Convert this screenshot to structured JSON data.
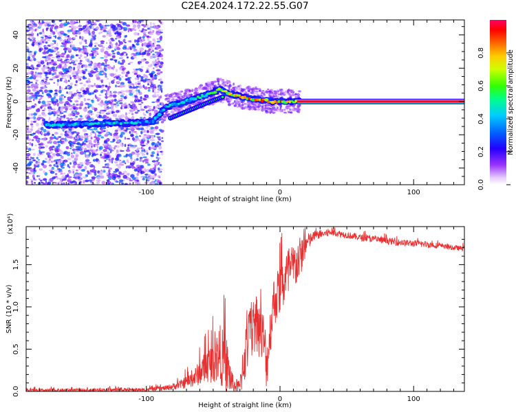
{
  "title": "C2E4.2024.172.22.55.G07",
  "chart_data": [
    {
      "type": "heatmap",
      "xlabel": "Height of straight line (km)",
      "ylabel": "Frequency (Hz)",
      "xlim": [
        -190,
        138
      ],
      "ylim": [
        -50,
        49
      ],
      "xticks": [
        -100,
        0,
        100
      ],
      "yticks": [
        -40,
        -20,
        0,
        20,
        40
      ],
      "colorbar": {
        "label": "Normalized spectral amplitude",
        "range": [
          0,
          1
        ],
        "ticks": [
          0.0,
          0.2,
          0.4,
          0.6,
          0.8
        ],
        "tick_labels": [
          "0.0",
          "0.2",
          "0.4",
          "0.6",
          "0.8"
        ]
      },
      "ridge": {
        "x": [
          -175,
          -150,
          -130,
          -110,
          -95,
          -85,
          -70,
          -55,
          -45,
          -35,
          -25,
          -15,
          -5,
          5,
          15,
          138
        ],
        "freq": [
          -14,
          -14,
          -13,
          -13,
          -12,
          -3,
          0,
          4,
          7,
          4,
          2,
          1,
          0,
          0,
          0,
          0
        ],
        "amplitude": [
          0.5,
          0.45,
          0.5,
          0.45,
          0.4,
          0.5,
          0.5,
          0.6,
          0.65,
          0.75,
          0.85,
          0.9,
          0.9,
          0.9,
          0.95,
          1.0
        ]
      },
      "secondary_ridge": {
        "x": [
          -82,
          -70,
          -55,
          -42
        ],
        "freq": [
          -10,
          -6,
          -1,
          3
        ]
      },
      "noise_region_x": [
        -190,
        -88
      ]
    },
    {
      "type": "line",
      "xlabel": "Height of straight line (km)",
      "ylabel": "SNR (10 * v/v)",
      "y_multiplier": "(x10⁴)",
      "xlim": [
        -190,
        138
      ],
      "ylim": [
        0,
        1.95
      ],
      "xticks": [
        -100,
        0,
        100
      ],
      "yticks": [
        0.0,
        0.5,
        1.0,
        1.5
      ],
      "ytick_labels": [
        "0.0",
        "0.5",
        "1.0",
        "1.5"
      ],
      "color": "#e83030",
      "envelope": {
        "x": [
          -190,
          -100,
          -85,
          -75,
          -65,
          -55,
          -50,
          -45,
          -40,
          -35,
          -30,
          -28,
          -24,
          -18,
          -12,
          -10,
          -5,
          0,
          5,
          10,
          15,
          20,
          25,
          30,
          40,
          50,
          60,
          70,
          80,
          90,
          100,
          110,
          120,
          130,
          138
        ],
        "mean": [
          0.01,
          0.02,
          0.04,
          0.08,
          0.15,
          0.3,
          0.35,
          0.45,
          0.3,
          0.07,
          0.05,
          0.3,
          0.6,
          0.85,
          0.6,
          0.3,
          1.05,
          1.2,
          1.35,
          1.45,
          1.58,
          1.75,
          1.83,
          1.86,
          1.88,
          1.85,
          1.82,
          1.8,
          1.78,
          1.76,
          1.75,
          1.74,
          1.72,
          1.7,
          1.69
        ],
        "spread": [
          0.02,
          0.02,
          0.03,
          0.05,
          0.1,
          0.2,
          0.25,
          0.35,
          0.35,
          0.1,
          0.08,
          0.3,
          0.35,
          0.35,
          0.35,
          0.3,
          0.3,
          0.3,
          0.35,
          0.3,
          0.25,
          0.12,
          0.06,
          0.05,
          0.04,
          0.04,
          0.04,
          0.04,
          0.04,
          0.04,
          0.04,
          0.04,
          0.03,
          0.03,
          0.03
        ]
      }
    }
  ]
}
